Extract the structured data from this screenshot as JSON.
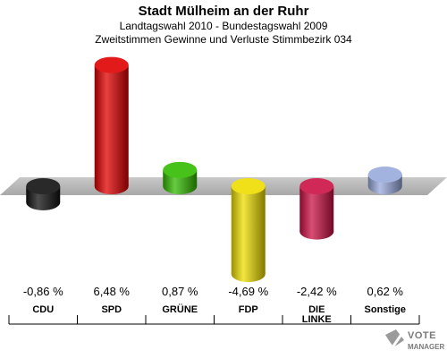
{
  "header": {
    "title": "Stadt Mülheim an der Ruhr",
    "subtitle1": "Landtagswahl 2010 - Bundestagswahl 2009",
    "subtitle2": "Zweitstimmen Gewinne und Verluste Stimmbezirk 034"
  },
  "chart_data": {
    "type": "bar",
    "categories": [
      "CDU",
      "SPD",
      "GRÜNE",
      "FDP",
      "DIE LINKE",
      "Sonstige"
    ],
    "values": [
      -0.86,
      6.48,
      0.87,
      -4.69,
      -2.42,
      0.62
    ],
    "value_labels": [
      "-0,86 %",
      "6,48 %",
      "0,87 %",
      "-4,69 %",
      "-2,42 %",
      "0,62 %"
    ],
    "colors": [
      "#111111",
      "#e00000",
      "#33bb00",
      "#eedd00",
      "#cc1144",
      "#99aadd"
    ],
    "ylim": [
      -5,
      7
    ],
    "grid": false,
    "legend": "none"
  },
  "logo": {
    "line1": "VOTE",
    "line2": "MANAGER"
  }
}
